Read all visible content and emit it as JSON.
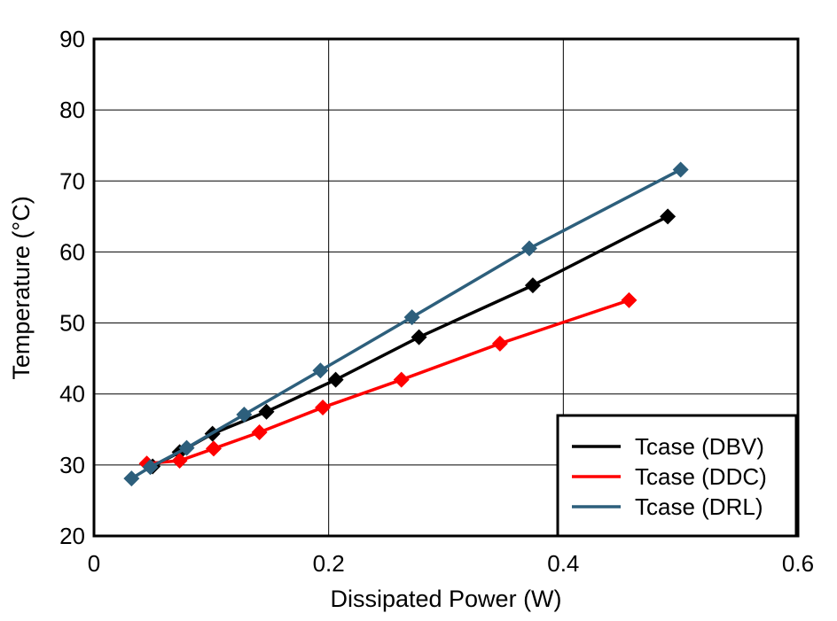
{
  "chart_data": {
    "type": "line",
    "title": "",
    "xlabel": "Dissipated Power (W)",
    "ylabel": "Temperature (°C)",
    "xlim": [
      0,
      0.6
    ],
    "ylim": [
      20,
      90
    ],
    "xticks": [
      0,
      0.2,
      0.4,
      0.6
    ],
    "xtick_labels": [
      "0",
      "0.2",
      "0.4",
      "0.6"
    ],
    "yticks": [
      20,
      30,
      40,
      50,
      60,
      70,
      80,
      90
    ],
    "ytick_labels": [
      "20",
      "30",
      "40",
      "50",
      "60",
      "70",
      "80",
      "90"
    ],
    "grid": true,
    "legend_position": "bottom-right",
    "series": [
      {
        "name": "Tcase (DBV)",
        "color": "#000000",
        "marker": "diamond",
        "x": [
          0.05,
          0.073,
          0.101,
          0.147,
          0.206,
          0.277,
          0.374,
          0.489
        ],
        "y": [
          29.8,
          31.8,
          34.4,
          37.5,
          42.0,
          48.0,
          55.3,
          65.0
        ]
      },
      {
        "name": "Tcase (DDC)",
        "color": "#ff0000",
        "marker": "diamond",
        "x": [
          0.045,
          0.073,
          0.102,
          0.141,
          0.195,
          0.262,
          0.346,
          0.456
        ],
        "y": [
          30.2,
          30.6,
          32.3,
          34.6,
          38.1,
          42.0,
          47.1,
          53.2
        ]
      },
      {
        "name": "Tcase (DRL)",
        "color": "#2d5f7c",
        "marker": "diamond",
        "x": [
          0.032,
          0.048,
          0.079,
          0.128,
          0.193,
          0.271,
          0.371,
          0.5
        ],
        "y": [
          28.1,
          29.7,
          32.4,
          37.1,
          43.3,
          50.8,
          60.5,
          71.6
        ]
      }
    ]
  }
}
